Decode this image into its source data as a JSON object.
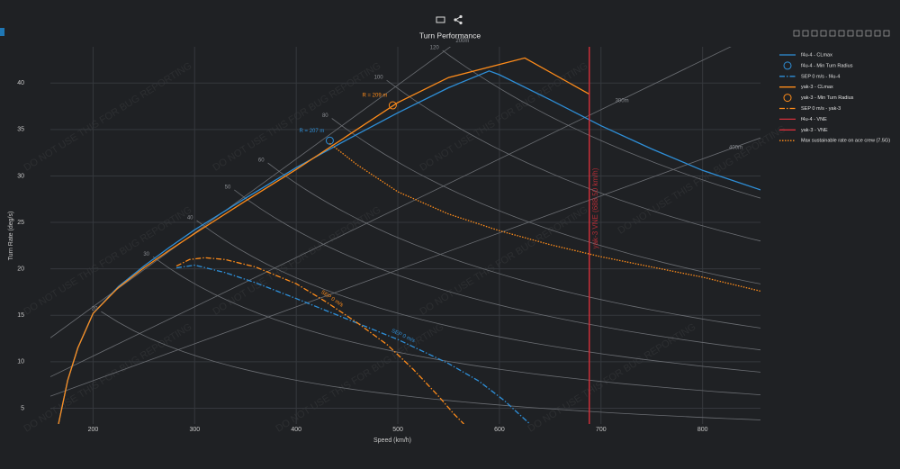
{
  "chart_data": {
    "type": "line",
    "title": "Turn Performance",
    "x_label": "Speed (km/h)",
    "y_label": "Turn Rate (deg/s)",
    "watermark": "DO NOT USE THIS FOR BUG REPORTING",
    "xlim": [
      158,
      857
    ],
    "ylim": [
      3.3,
      43.9
    ],
    "xticks": [
      200,
      300,
      400,
      500,
      600,
      700,
      800
    ],
    "yticks": [
      5,
      10,
      15,
      20,
      25,
      30,
      35,
      40
    ],
    "grid": true,
    "series": [
      {
        "name": "f4u-4 - CLmax",
        "color": "#2e8fd8",
        "mode": "lines",
        "dash": "solid",
        "x": [
          166,
          175,
          185,
          200,
          225,
          250,
          275,
          300,
          350,
          400,
          450,
          500,
          550,
          590,
          600,
          650,
          700,
          750,
          800,
          857
        ],
        "values": [
          3.3,
          8,
          11.5,
          15.2,
          18.1,
          20.3,
          22.3,
          24.2,
          27.6,
          30.9,
          33.9,
          36.8,
          39.5,
          41.3,
          40.9,
          38.2,
          35.4,
          32.9,
          30.6,
          28.5
        ]
      },
      {
        "name": "f4u-4 - Min Turn Radius",
        "color": "#2e8fd8",
        "mode": "markers",
        "x": [
          433
        ],
        "values": [
          33.8
        ],
        "label": "R = 207 m"
      },
      {
        "name": "SEP 0 m/s - f4u-4",
        "color": "#2e8fd8",
        "mode": "lines",
        "dash": "dashdot",
        "x": [
          282,
          300,
          330,
          360,
          400,
          450,
          500,
          550,
          580,
          605,
          620,
          630
        ],
        "values": [
          20.1,
          20.4,
          19.6,
          18.5,
          16.8,
          14.6,
          12.4,
          9.8,
          7.9,
          5.8,
          4.3,
          3.3
        ],
        "label": "SEP 0 m/s"
      },
      {
        "name": "yak-3 - CLmax",
        "color": "#ff8c1a",
        "mode": "lines",
        "dash": "solid",
        "x": [
          166,
          175,
          185,
          200,
          225,
          250,
          275,
          300,
          350,
          400,
          450,
          500,
          550,
          600,
          625,
          688.5
        ],
        "values": [
          3.3,
          8,
          11.5,
          15.2,
          18,
          20.1,
          22,
          23.8,
          27.3,
          30.7,
          34.3,
          37.9,
          40.6,
          42,
          42.7,
          38.8
        ]
      },
      {
        "name": "yak-3 - Min Turn Radius",
        "color": "#ff8c1a",
        "mode": "markers",
        "x": [
          495
        ],
        "values": [
          37.6
        ],
        "label": "R = 209 m"
      },
      {
        "name": "SEP 0 m/s - yak-3",
        "color": "#ff8c1a",
        "mode": "lines",
        "dash": "dashdot",
        "x": [
          282,
          295,
          310,
          330,
          360,
          400,
          430,
          460,
          490,
          515,
          540,
          555,
          565
        ],
        "values": [
          20.3,
          21,
          21.2,
          21,
          20.2,
          18.4,
          16.4,
          14.2,
          11.8,
          9.2,
          6.3,
          4.4,
          3.3
        ],
        "label": "SEP 0 m/s"
      },
      {
        "name": "f4u-4 - VNE",
        "color": "#d62f3a",
        "mode": "vline",
        "x": 688.5
      },
      {
        "name": "yak-3 - VNE",
        "color": "#d62f3a",
        "mode": "vline",
        "x": 688.5,
        "label": "yak-3 VNE (688.50 km/h)"
      },
      {
        "name": "Max sustainable rate on ace crew (7.5G)",
        "color": "#ff8c1a",
        "mode": "lines",
        "dash": "dot",
        "x": [
          433,
          460,
          500,
          550,
          600,
          650,
          700,
          750,
          800,
          857
        ],
        "values": [
          33.5,
          31.2,
          28.3,
          25.9,
          24.1,
          22.6,
          21.3,
          20.2,
          19.1,
          17.6
        ]
      }
    ],
    "guides": {
      "curves": [
        {
          "label": "20",
          "x": 208,
          "y": 15.4
        },
        {
          "label": "30",
          "x": 259,
          "y": 21.3
        },
        {
          "label": "40",
          "x": 302,
          "y": 25.2
        },
        {
          "label": "50",
          "x": 339,
          "y": 28.5
        },
        {
          "label": "60",
          "x": 372,
          "y": 31.4
        },
        {
          "label": "80",
          "x": 435,
          "y": 36.2
        },
        {
          "label": "100",
          "x": 489,
          "y": 40.3
        },
        {
          "label": "120",
          "x": 544,
          "y": 43.5
        }
      ],
      "radius": [
        {
          "value": 200,
          "label": "200m",
          "x": 557
        },
        {
          "value": 300,
          "label": "300m",
          "x": 714
        },
        {
          "value": 400,
          "label": "400m",
          "x": 826
        }
      ]
    }
  }
}
